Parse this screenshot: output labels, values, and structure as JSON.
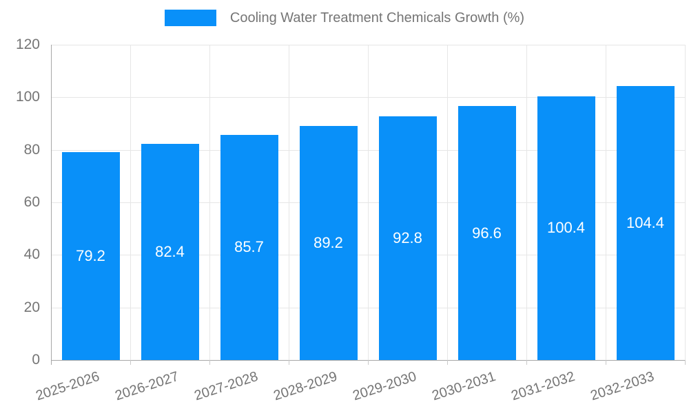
{
  "chart_data": {
    "type": "bar",
    "title": "Cooling Water Treatment Chemicals Growth (%)",
    "legend_position": "top",
    "categories": [
      "2025-2026",
      "2026-2027",
      "2027-2028",
      "2028-2029",
      "2029-2030",
      "2030-2031",
      "2031-2032",
      "2032-2033"
    ],
    "values": [
      79.2,
      82.4,
      85.7,
      89.2,
      92.8,
      96.6,
      100.4,
      104.4
    ],
    "xlabel": "",
    "ylabel": "",
    "ylim": [
      0,
      120
    ],
    "yticks": [
      0,
      20,
      40,
      60,
      80,
      100,
      120
    ],
    "grid": true,
    "x_tick_rotation_deg": -18,
    "colors": {
      "bar": "#0990f9",
      "grid": "#e6e6e6",
      "axis": "#a6a6a6",
      "minor_tick": "#c9c9c9",
      "tick_label": "#757575",
      "value_label": "#ffffff",
      "background": "#ffffff"
    }
  }
}
